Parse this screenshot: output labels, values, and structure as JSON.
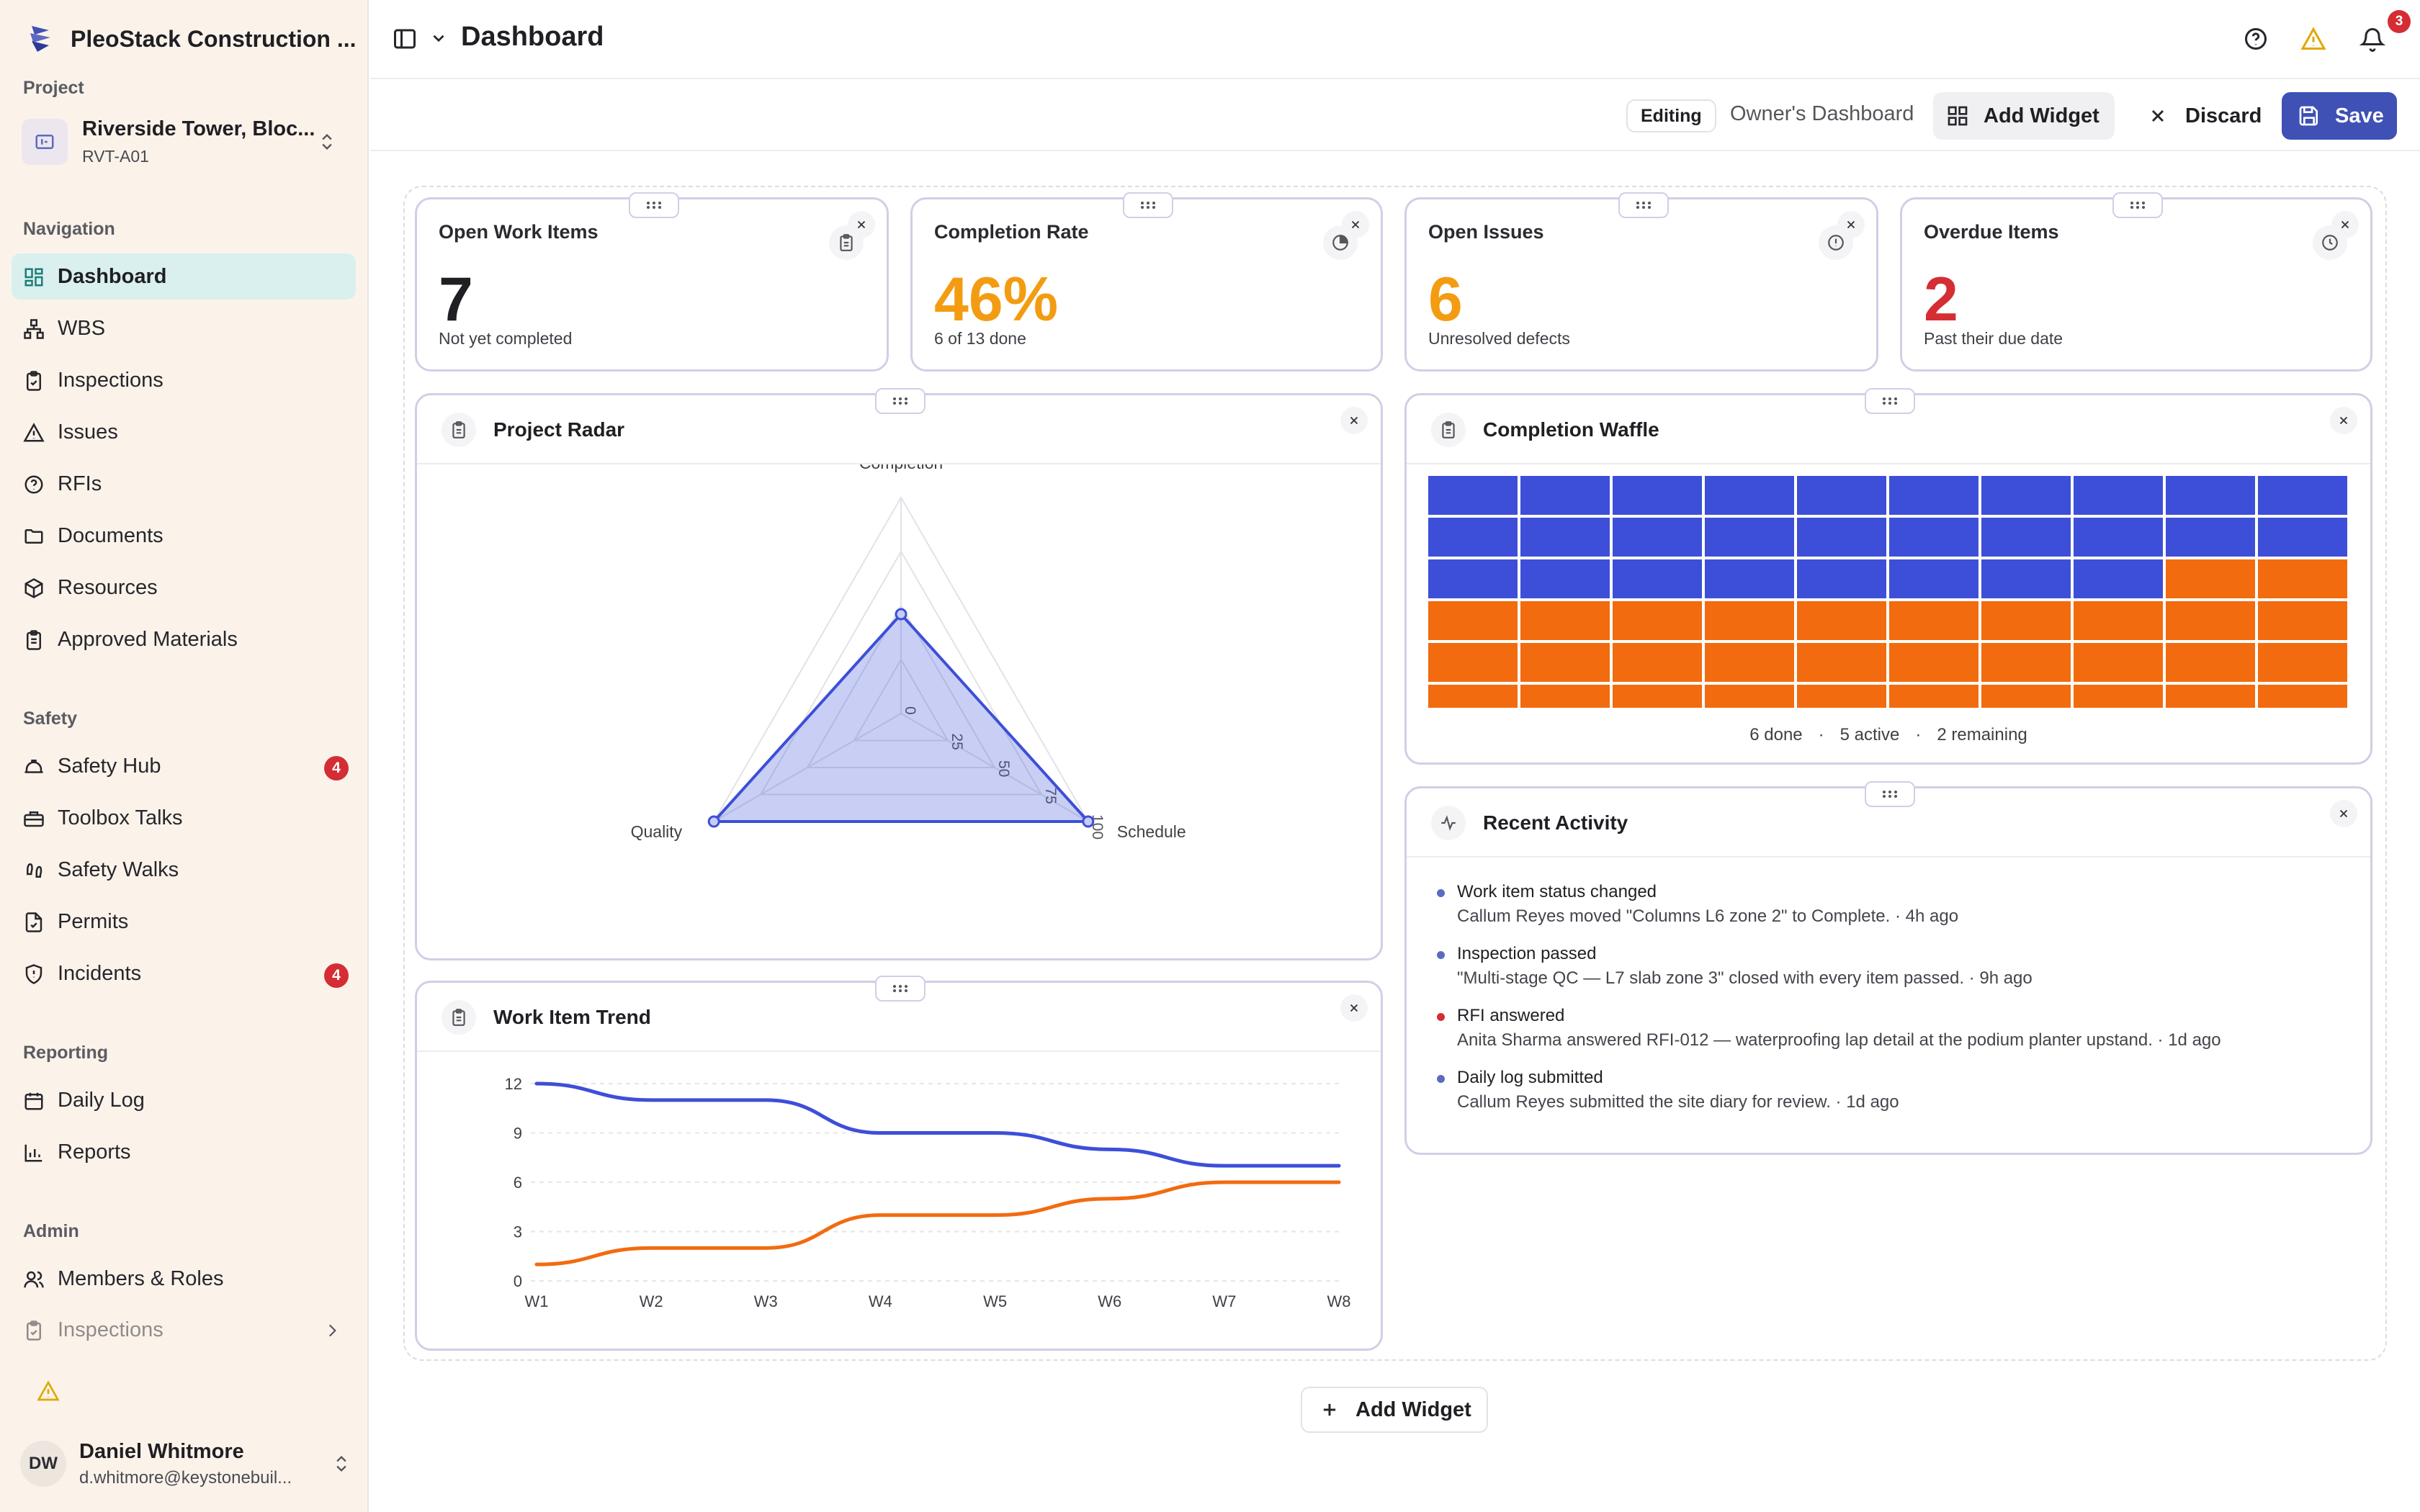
{
  "brand": {
    "name": "PleoStack Construction ..."
  },
  "sidebar": {
    "project_label": "Project",
    "project": {
      "name": "Riverside Tower, Bloc...",
      "code": "RVT-A01"
    },
    "sections": [
      {
        "label": "Navigation",
        "items": [
          {
            "label": "Dashboard",
            "icon": "layout-grid-icon",
            "active": true
          },
          {
            "label": "WBS",
            "icon": "network-icon"
          },
          {
            "label": "Inspections",
            "icon": "clipboard-check-icon"
          },
          {
            "label": "Issues",
            "icon": "triangle-alert-icon"
          },
          {
            "label": "RFIs",
            "icon": "help-circle-icon"
          },
          {
            "label": "Documents",
            "icon": "folder-icon"
          },
          {
            "label": "Resources",
            "icon": "box-icon"
          },
          {
            "label": "Approved Materials",
            "icon": "clipboard-list-icon"
          }
        ]
      },
      {
        "label": "Safety",
        "items": [
          {
            "label": "Safety Hub",
            "icon": "hard-hat-icon",
            "badge": "4"
          },
          {
            "label": "Toolbox Talks",
            "icon": "toolbox-icon"
          },
          {
            "label": "Safety Walks",
            "icon": "footprints-icon"
          },
          {
            "label": "Permits",
            "icon": "file-check-icon"
          },
          {
            "label": "Incidents",
            "icon": "shield-alert-icon",
            "badge": "4"
          }
        ]
      },
      {
        "label": "Reporting",
        "items": [
          {
            "label": "Daily Log",
            "icon": "calendar-icon"
          },
          {
            "label": "Reports",
            "icon": "bar-chart-icon"
          }
        ]
      },
      {
        "label": "Admin",
        "items": [
          {
            "label": "Members & Roles",
            "icon": "users-icon"
          },
          {
            "label": "Inspections",
            "icon": "clipboard-check-icon"
          }
        ]
      }
    ],
    "user": {
      "initials": "DW",
      "name": "Daniel Whitmore",
      "email": "d.whitmore@keystonebuil..."
    }
  },
  "header": {
    "title": "Dashboard",
    "notifications_count": "3"
  },
  "editbar": {
    "editing_label": "Editing",
    "dashboard_name": "Owner's Dashboard",
    "add_widget_label": "Add Widget",
    "discard_label": "Discard",
    "save_label": "Save"
  },
  "kpis": [
    {
      "title": "Open Work Items",
      "value": "7",
      "subtitle": "Not yet completed",
      "color": "#1f1f24",
      "icon": "clipboard-icon"
    },
    {
      "title": "Completion Rate",
      "value": "46%",
      "subtitle": "6 of 13 done",
      "color": "#f39c12",
      "icon": "progress-icon"
    },
    {
      "title": "Open Issues",
      "value": "6",
      "subtitle": "Unresolved defects",
      "color": "#f39c12",
      "icon": "alert-circle-icon"
    },
    {
      "title": "Overdue Items",
      "value": "2",
      "subtitle": "Past their due date",
      "color": "#d42d34",
      "icon": "clock-icon"
    }
  ],
  "radar": {
    "title": "Project Radar",
    "axes": [
      "Completion",
      "Schedule",
      "Quality"
    ],
    "ticks": [
      "0",
      "25",
      "50",
      "75",
      "100"
    ]
  },
  "waffle": {
    "title": "Completion Waffle",
    "legend": [
      "6 done",
      "·",
      "5 active",
      "·",
      "2 remaining"
    ]
  },
  "activity": {
    "title": "Recent Activity",
    "items": [
      {
        "title": "Work item status changed",
        "desc": "Callum Reyes moved \"Columns L6 zone 2\" to Complete. · 4h ago",
        "dot": "#5c6bc0"
      },
      {
        "title": "Inspection passed",
        "desc": "\"Multi-stage QC — L7 slab zone 3\" closed with every item passed. · 9h ago",
        "dot": "#5c6bc0"
      },
      {
        "title": "RFI answered",
        "desc": "Anita Sharma answered RFI-012 — waterproofing lap detail at the podium planter upstand. · 1d ago",
        "dot": "#d42d34"
      },
      {
        "title": "Daily log submitted",
        "desc": "Callum Reyes submitted the site diary for review. · 1d ago",
        "dot": "#5c6bc0"
      }
    ]
  },
  "trend": {
    "title": "Work Item Trend"
  },
  "bottom_add_widget_label": "Add Widget",
  "colors": {
    "accent": "#3f51b5",
    "blue": "#3d4fd8",
    "orange": "#f26b0f",
    "badge": "#d42d34"
  },
  "chart_data": [
    {
      "type": "radar",
      "title": "Project Radar",
      "axes": [
        "Completion",
        "Schedule",
        "Quality"
      ],
      "range": [
        0,
        100
      ],
      "ticks": [
        0,
        25,
        50,
        75,
        100
      ],
      "values": [
        46,
        100,
        100
      ]
    },
    {
      "type": "waffle",
      "title": "Completion Waffle",
      "categories": [
        "done",
        "active",
        "remaining"
      ],
      "values": [
        6,
        5,
        2
      ],
      "colors": [
        "#3d4fd8",
        "#f26b0f",
        "#f26b0f"
      ]
    },
    {
      "type": "line",
      "title": "Work Item Trend",
      "x": [
        "W1",
        "W2",
        "W3",
        "W4",
        "W5",
        "W6",
        "W7",
        "W8"
      ],
      "ylim": [
        0,
        12
      ],
      "yticks": [
        0,
        3,
        6,
        9,
        12
      ],
      "series": [
        {
          "values": [
            12,
            11,
            11,
            9,
            9,
            8,
            7,
            7
          ],
          "color": "#3d4fd8"
        },
        {
          "values": [
            1,
            2,
            2,
            4,
            4,
            5,
            6,
            6
          ],
          "color": "#f26b0f"
        }
      ]
    }
  ]
}
